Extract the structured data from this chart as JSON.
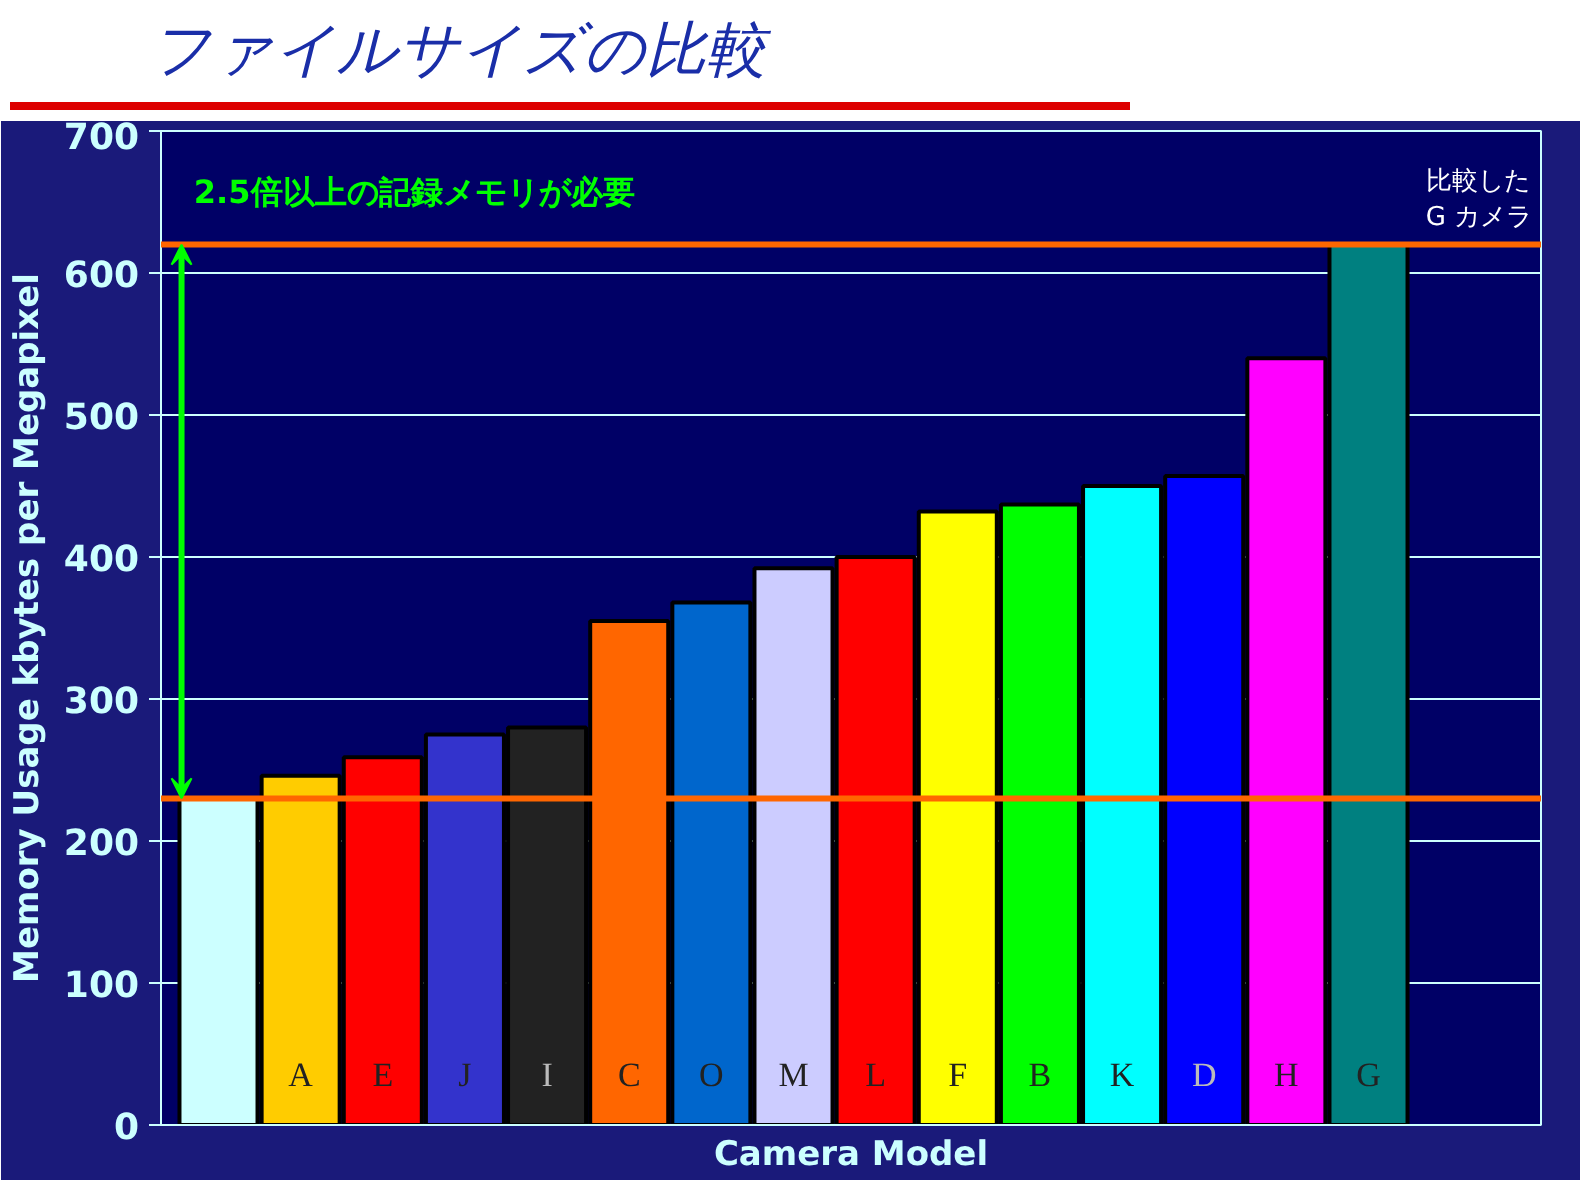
{
  "chart_data": {
    "type": "bar",
    "title": "ファイルサイズの比較",
    "xlabel": "Camera Model",
    "ylabel": "Memory Usage kbytes per Megapixel",
    "categories": [
      null,
      "A",
      "E",
      "J",
      "I",
      "C",
      "O",
      "M",
      "L",
      "F",
      "B",
      "K",
      "D",
      "H",
      "G"
    ],
    "values": [
      230,
      246,
      259,
      275,
      280,
      355,
      368,
      392,
      400,
      432,
      437,
      450,
      457,
      540,
      620
    ],
    "colors": [
      "#ccffff",
      "#ffcc00",
      "#ff0000",
      "#3333cc",
      "#222222",
      "#ff6600",
      "#0066cc",
      "#ccccff",
      "#ff0000",
      "#ffff00",
      "#00ff00",
      "#00ffff",
      "#0000ff",
      "#ff00ff",
      "#008080"
    ],
    "ylim": [
      0,
      700
    ],
    "yticks": [
      0,
      100,
      200,
      300,
      400,
      500,
      600,
      700
    ],
    "grid": "y",
    "ref_lines": [
      {
        "axis": "y",
        "value": 620,
        "label": "比較した\nG カメラ",
        "color": "#ff6600"
      },
      {
        "axis": "y",
        "value": 230,
        "label": null,
        "color": "#ff6600"
      }
    ],
    "annotations": [
      "2.5倍以上の記録メモリが必要"
    ]
  }
}
